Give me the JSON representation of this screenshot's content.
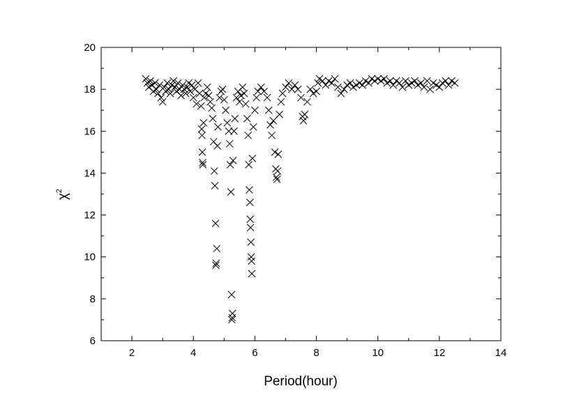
{
  "chart_data": {
    "type": "scatter",
    "title": "",
    "xlabel": "Period(hour)",
    "ylabel_symbol": "χ",
    "ylabel_superscript": "2",
    "xlim": [
      1,
      14
    ],
    "ylim": [
      6,
      20
    ],
    "xticks": [
      2,
      4,
      6,
      8,
      10,
      12,
      14
    ],
    "yticks": [
      6,
      8,
      10,
      12,
      14,
      16,
      18,
      20
    ],
    "grid": false,
    "marker": "x",
    "marker_color": "#000000",
    "series": [
      {
        "points": [
          [
            2.45,
            18.5
          ],
          [
            2.5,
            18.3
          ],
          [
            2.55,
            18.1
          ],
          [
            2.6,
            18.4
          ],
          [
            2.65,
            18.2
          ],
          [
            2.7,
            17.9
          ],
          [
            2.75,
            18.3
          ],
          [
            2.8,
            18.0
          ],
          [
            2.85,
            17.8
          ],
          [
            2.9,
            18.2
          ],
          [
            2.95,
            17.6
          ],
          [
            3.0,
            17.4
          ],
          [
            3.05,
            18.1
          ],
          [
            3.1,
            17.9
          ],
          [
            3.15,
            18.3
          ],
          [
            3.2,
            18.0
          ],
          [
            3.25,
            17.8
          ],
          [
            3.3,
            18.2
          ],
          [
            3.35,
            18.4
          ],
          [
            3.4,
            18.1
          ],
          [
            3.45,
            17.9
          ],
          [
            3.5,
            18.3
          ],
          [
            3.55,
            18.0
          ],
          [
            3.6,
            17.7
          ],
          [
            3.65,
            18.2
          ],
          [
            3.7,
            18.0
          ],
          [
            3.75,
            17.8
          ],
          [
            3.8,
            18.1
          ],
          [
            3.85,
            18.3
          ],
          [
            3.9,
            17.9
          ],
          [
            3.95,
            18.2
          ],
          [
            4.0,
            17.6
          ],
          [
            4.05,
            18.0
          ],
          [
            4.1,
            17.3
          ],
          [
            4.15,
            18.3
          ],
          [
            4.2,
            17.8
          ],
          [
            4.25,
            17.2
          ],
          [
            4.27,
            16.1
          ],
          [
            4.28,
            15.8
          ],
          [
            4.29,
            15.0
          ],
          [
            4.3,
            14.5
          ],
          [
            4.31,
            14.4
          ],
          [
            4.33,
            16.4
          ],
          [
            4.35,
            17.6
          ],
          [
            4.4,
            17.8
          ],
          [
            4.45,
            18.1
          ],
          [
            4.5,
            17.7
          ],
          [
            4.55,
            17.4
          ],
          [
            4.6,
            17.1
          ],
          [
            4.63,
            16.6
          ],
          [
            4.66,
            15.5
          ],
          [
            4.68,
            14.1
          ],
          [
            4.7,
            13.4
          ],
          [
            4.72,
            11.6
          ],
          [
            4.73,
            9.6
          ],
          [
            4.74,
            9.7
          ],
          [
            4.76,
            10.4
          ],
          [
            4.78,
            15.3
          ],
          [
            4.8,
            16.2
          ],
          [
            4.85,
            17.6
          ],
          [
            4.9,
            17.9
          ],
          [
            4.95,
            18.0
          ],
          [
            5.0,
            17.5
          ],
          [
            5.05,
            17.0
          ],
          [
            5.1,
            16.4
          ],
          [
            5.15,
            16.0
          ],
          [
            5.18,
            15.4
          ],
          [
            5.2,
            14.4
          ],
          [
            5.22,
            13.1
          ],
          [
            5.24,
            8.2
          ],
          [
            5.25,
            7.0
          ],
          [
            5.26,
            7.1
          ],
          [
            5.27,
            7.3
          ],
          [
            5.29,
            14.6
          ],
          [
            5.32,
            16.0
          ],
          [
            5.35,
            16.6
          ],
          [
            5.4,
            17.6
          ],
          [
            5.45,
            17.9
          ],
          [
            5.5,
            17.4
          ],
          [
            5.55,
            17.7
          ],
          [
            5.6,
            18.1
          ],
          [
            5.65,
            17.8
          ],
          [
            5.7,
            17.3
          ],
          [
            5.75,
            16.6
          ],
          [
            5.78,
            15.8
          ],
          [
            5.8,
            14.4
          ],
          [
            5.82,
            13.2
          ],
          [
            5.84,
            12.6
          ],
          [
            5.85,
            11.8
          ],
          [
            5.86,
            11.4
          ],
          [
            5.87,
            10.7
          ],
          [
            5.88,
            10.0
          ],
          [
            5.89,
            9.8
          ],
          [
            5.9,
            9.2
          ],
          [
            5.92,
            14.7
          ],
          [
            5.95,
            16.2
          ],
          [
            6.0,
            17.0
          ],
          [
            6.05,
            17.6
          ],
          [
            6.1,
            17.9
          ],
          [
            6.2,
            18.1
          ],
          [
            6.3,
            17.9
          ],
          [
            6.4,
            17.6
          ],
          [
            6.45,
            17.0
          ],
          [
            6.5,
            16.3
          ],
          [
            6.55,
            15.8
          ],
          [
            6.6,
            16.5
          ],
          [
            6.65,
            15.0
          ],
          [
            6.68,
            14.2
          ],
          [
            6.7,
            13.8
          ],
          [
            6.72,
            13.7
          ],
          [
            6.74,
            14.1
          ],
          [
            6.76,
            14.9
          ],
          [
            6.8,
            16.8
          ],
          [
            6.85,
            17.4
          ],
          [
            6.9,
            17.8
          ],
          [
            7.0,
            18.1
          ],
          [
            7.1,
            18.3
          ],
          [
            7.2,
            18.0
          ],
          [
            7.3,
            18.2
          ],
          [
            7.4,
            18.0
          ],
          [
            7.5,
            17.6
          ],
          [
            7.55,
            16.7
          ],
          [
            7.58,
            16.5
          ],
          [
            7.62,
            16.8
          ],
          [
            7.7,
            17.4
          ],
          [
            7.8,
            18.0
          ],
          [
            7.9,
            17.8
          ],
          [
            8.0,
            17.9
          ],
          [
            8.05,
            18.3
          ],
          [
            8.1,
            18.5
          ],
          [
            8.2,
            18.4
          ],
          [
            8.3,
            18.2
          ],
          [
            8.4,
            18.4
          ],
          [
            8.5,
            18.3
          ],
          [
            8.6,
            18.5
          ],
          [
            8.7,
            18.1
          ],
          [
            8.8,
            17.8
          ],
          [
            8.9,
            18.0
          ],
          [
            9.0,
            18.2
          ],
          [
            9.1,
            18.3
          ],
          [
            9.2,
            18.1
          ],
          [
            9.3,
            18.2
          ],
          [
            9.4,
            18.3
          ],
          [
            9.5,
            18.2
          ],
          [
            9.6,
            18.4
          ],
          [
            9.7,
            18.3
          ],
          [
            9.8,
            18.5
          ],
          [
            9.9,
            18.4
          ],
          [
            10.0,
            18.5
          ],
          [
            10.1,
            18.4
          ],
          [
            10.2,
            18.5
          ],
          [
            10.3,
            18.3
          ],
          [
            10.4,
            18.4
          ],
          [
            10.5,
            18.2
          ],
          [
            10.6,
            18.4
          ],
          [
            10.7,
            18.3
          ],
          [
            10.8,
            18.1
          ],
          [
            10.9,
            18.4
          ],
          [
            11.0,
            18.2
          ],
          [
            11.1,
            18.3
          ],
          [
            11.2,
            18.4
          ],
          [
            11.3,
            18.2
          ],
          [
            11.4,
            18.3
          ],
          [
            11.5,
            18.1
          ],
          [
            11.6,
            18.4
          ],
          [
            11.7,
            18.0
          ],
          [
            11.8,
            18.3
          ],
          [
            11.9,
            18.2
          ],
          [
            12.0,
            18.1
          ],
          [
            12.1,
            18.3
          ],
          [
            12.2,
            18.4
          ],
          [
            12.3,
            18.2
          ],
          [
            12.4,
            18.4
          ],
          [
            12.5,
            18.3
          ]
        ]
      }
    ]
  }
}
